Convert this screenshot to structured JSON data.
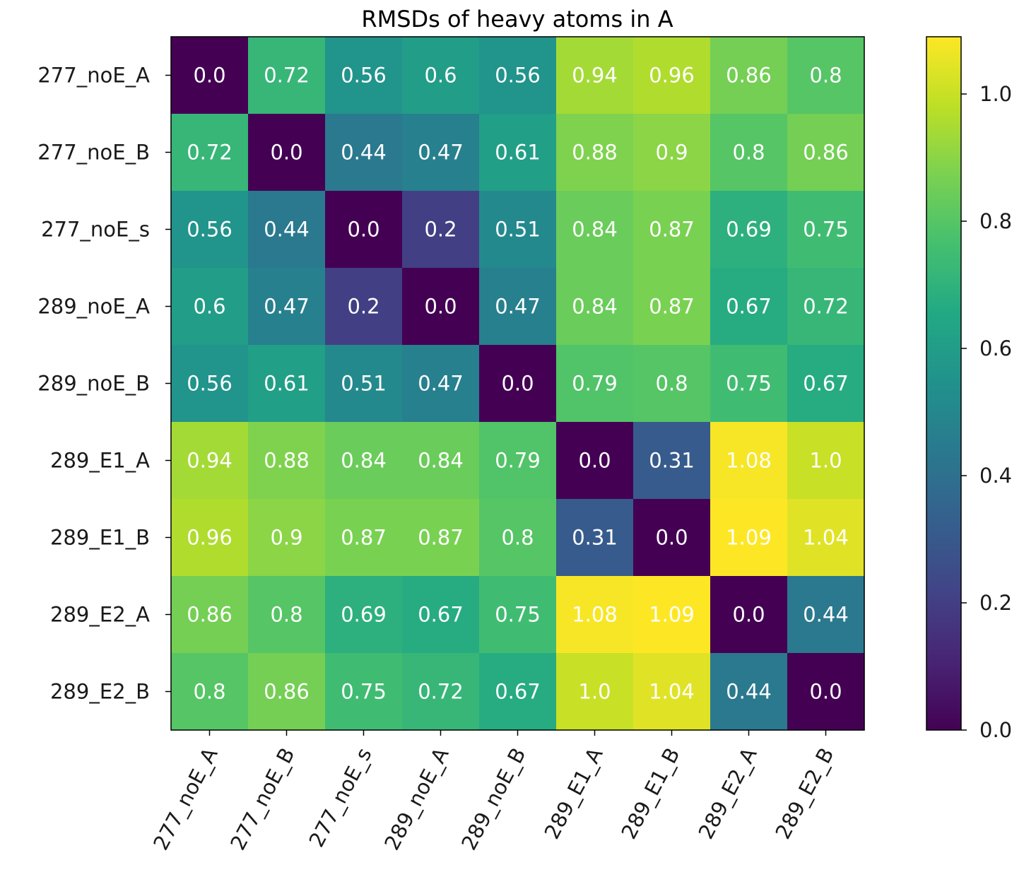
{
  "chart_data": {
    "type": "heatmap",
    "title": "RMSDs of heavy atoms in A",
    "row_labels": [
      "277_noE_A",
      "277_noE_B",
      "277_noE_s",
      "289_noE_A",
      "289_noE_B",
      "289_E1_A",
      "289_E1_B",
      "289_E2_A",
      "289_E2_B"
    ],
    "col_labels": [
      "277_noE_A",
      "277_noE_B",
      "277_noE_s",
      "289_noE_A",
      "289_noE_B",
      "289_E1_A",
      "289_E1_B",
      "289_E2_A",
      "289_E2_B"
    ],
    "values": [
      [
        0.0,
        0.72,
        0.56,
        0.6,
        0.56,
        0.94,
        0.96,
        0.86,
        0.8
      ],
      [
        0.72,
        0.0,
        0.44,
        0.47,
        0.61,
        0.88,
        0.9,
        0.8,
        0.86
      ],
      [
        0.56,
        0.44,
        0.0,
        0.2,
        0.51,
        0.84,
        0.87,
        0.69,
        0.75
      ],
      [
        0.6,
        0.47,
        0.2,
        0.0,
        0.47,
        0.84,
        0.87,
        0.67,
        0.72
      ],
      [
        0.56,
        0.61,
        0.51,
        0.47,
        0.0,
        0.79,
        0.8,
        0.75,
        0.67
      ],
      [
        0.94,
        0.88,
        0.84,
        0.84,
        0.79,
        0.0,
        0.31,
        1.08,
        1.0
      ],
      [
        0.96,
        0.9,
        0.87,
        0.87,
        0.8,
        0.31,
        0.0,
        1.09,
        1.04
      ],
      [
        0.86,
        0.8,
        0.69,
        0.67,
        0.75,
        1.08,
        1.09,
        0.0,
        0.44
      ],
      [
        0.8,
        0.86,
        0.75,
        0.72,
        0.67,
        1.0,
        1.04,
        0.44,
        0.0
      ]
    ],
    "cell_labels": [
      [
        "0.0",
        "0.72",
        "0.56",
        "0.6",
        "0.56",
        "0.94",
        "0.96",
        "0.86",
        "0.8"
      ],
      [
        "0.72",
        "0.0",
        "0.44",
        "0.47",
        "0.61",
        "0.88",
        "0.9",
        "0.8",
        "0.86"
      ],
      [
        "0.56",
        "0.44",
        "0.0",
        "0.2",
        "0.51",
        "0.84",
        "0.87",
        "0.69",
        "0.75"
      ],
      [
        "0.6",
        "0.47",
        "0.2",
        "0.0",
        "0.47",
        "0.84",
        "0.87",
        "0.67",
        "0.72"
      ],
      [
        "0.56",
        "0.61",
        "0.51",
        "0.47",
        "0.0",
        "0.79",
        "0.8",
        "0.75",
        "0.67"
      ],
      [
        "0.94",
        "0.88",
        "0.84",
        "0.84",
        "0.79",
        "0.0",
        "0.31",
        "1.08",
        "1.0"
      ],
      [
        "0.96",
        "0.9",
        "0.87",
        "0.87",
        "0.8",
        "0.31",
        "0.0",
        "1.09",
        "1.04"
      ],
      [
        "0.86",
        "0.8",
        "0.69",
        "0.67",
        "0.75",
        "1.08",
        "1.09",
        "0.0",
        "0.44"
      ],
      [
        "0.8",
        "0.86",
        "0.75",
        "0.72",
        "0.67",
        "1.0",
        "1.04",
        "0.44",
        "0.0"
      ]
    ],
    "colormap": "viridis",
    "value_range": [
      0.0,
      1.09
    ],
    "colorbar": {
      "ticks": [
        0.0,
        0.2,
        0.4,
        0.6,
        0.8,
        1.0
      ],
      "tick_labels": [
        "0.0",
        "0.2",
        "0.4",
        "0.6",
        "0.8",
        "1.0"
      ]
    },
    "cell_label_color": "#ffffff",
    "grid": false,
    "x_tick_rotation": "rotated ~60°"
  }
}
